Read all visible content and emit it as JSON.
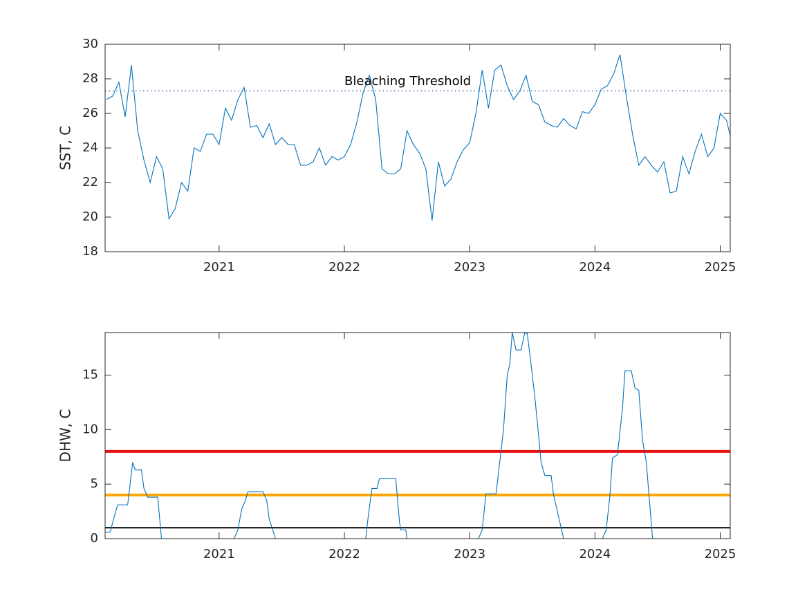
{
  "chart_data": [
    {
      "type": "line",
      "ylabel": "SST, C",
      "xlim": [
        2020.09,
        2025.08
      ],
      "xticks": [
        2021,
        2022,
        2023,
        2024,
        2025
      ],
      "ylim": [
        18,
        30
      ],
      "yticks": [
        18,
        20,
        22,
        24,
        26,
        28,
        30
      ],
      "x": [
        2020.1,
        2020.15,
        2020.2,
        2020.25,
        2020.3,
        2020.35,
        2020.4,
        2020.45,
        2020.5,
        2020.55,
        2020.6,
        2020.65,
        2020.7,
        2020.75,
        2020.8,
        2020.85,
        2020.9,
        2020.95,
        2021.0,
        2021.05,
        2021.1,
        2021.15,
        2021.2,
        2021.25,
        2021.3,
        2021.35,
        2021.4,
        2021.45,
        2021.5,
        2021.55,
        2021.6,
        2021.65,
        2021.7,
        2021.75,
        2021.8,
        2021.85,
        2021.9,
        2021.95,
        2022.0,
        2022.05,
        2022.1,
        2022.15,
        2022.2,
        2022.25,
        2022.3,
        2022.35,
        2022.4,
        2022.45,
        2022.5,
        2022.55,
        2022.6,
        2022.65,
        2022.7,
        2022.75,
        2022.8,
        2022.85,
        2022.9,
        2022.95,
        2023.0,
        2023.05,
        2023.1,
        2023.15,
        2023.2,
        2023.25,
        2023.3,
        2023.35,
        2023.4,
        2023.45,
        2023.5,
        2023.55,
        2023.6,
        2023.65,
        2023.7,
        2023.75,
        2023.8,
        2023.85,
        2023.9,
        2023.95,
        2024.0,
        2024.05,
        2024.1,
        2024.15,
        2024.2,
        2024.25,
        2024.3,
        2024.35,
        2024.4,
        2024.45,
        2024.5,
        2024.55,
        2024.6,
        2024.65,
        2024.7,
        2024.75,
        2024.8,
        2024.85,
        2024.9,
        2024.95,
        2025.0,
        2025.05,
        2025.08
      ],
      "series": [
        {
          "color": "#0072bd",
          "values": [
            26.8,
            27.0,
            27.8,
            25.8,
            28.8,
            25.0,
            23.3,
            22.0,
            23.5,
            22.8,
            19.9,
            20.5,
            22.0,
            21.5,
            24.0,
            23.8,
            24.8,
            24.8,
            24.2,
            26.3,
            25.6,
            26.8,
            27.5,
            25.2,
            25.3,
            24.6,
            25.4,
            24.2,
            24.6,
            24.2,
            24.2,
            23.0,
            23.0,
            23.2,
            24.0,
            23.0,
            23.5,
            23.3,
            23.5,
            24.2,
            25.5,
            27.2,
            28.2,
            26.8,
            22.8,
            22.5,
            22.5,
            22.8,
            25.0,
            24.2,
            23.7,
            22.8,
            19.8,
            23.2,
            21.8,
            22.2,
            23.2,
            23.9,
            24.3,
            26.0,
            28.5,
            26.3,
            28.5,
            28.8,
            27.6,
            26.8,
            27.3,
            28.2,
            26.7,
            26.5,
            25.5,
            25.3,
            25.2,
            25.7,
            25.3,
            25.1,
            26.1,
            26.0,
            26.5,
            27.4,
            27.6,
            28.3,
            29.4,
            27.0,
            24.8,
            23.0,
            23.5,
            23.0,
            22.6,
            23.2,
            21.4,
            21.5,
            23.5,
            22.5,
            23.8,
            24.8,
            23.5,
            24.0,
            26.0,
            25.6,
            24.7
          ]
        }
      ],
      "hlines": [
        {
          "value": 27.3,
          "color": "#1f3f9f",
          "style": "dotted"
        }
      ],
      "annotations": [
        {
          "text": "Bleaching Threshold",
          "x": 2022.0,
          "y": 27.84
        }
      ]
    },
    {
      "type": "line",
      "ylabel": "DHW, C",
      "xlim": [
        2020.09,
        2025.08
      ],
      "xticks": [
        2021,
        2022,
        2023,
        2024,
        2025
      ],
      "ylim": [
        0,
        18.9
      ],
      "yticks": [
        0,
        5,
        10,
        15
      ],
      "x": [
        2020.09,
        2020.13,
        2020.17,
        2020.19,
        2020.27,
        2020.31,
        2020.33,
        2020.38,
        2020.4,
        2020.43,
        2020.51,
        2020.54,
        2021.12,
        2021.15,
        2021.18,
        2021.21,
        2021.23,
        2021.35,
        2021.38,
        2021.4,
        2021.45,
        2022.17,
        2022.19,
        2022.22,
        2022.26,
        2022.28,
        2022.41,
        2022.44,
        2022.45,
        2022.49,
        2022.5,
        2023.07,
        2023.1,
        2023.13,
        2023.21,
        2023.23,
        2023.27,
        2023.3,
        2023.32,
        2023.34,
        2023.37,
        2023.41,
        2023.44,
        2023.46,
        2023.49,
        2023.52,
        2023.55,
        2023.57,
        2023.6,
        2023.65,
        2023.67,
        2023.71,
        2023.75,
        2024.06,
        2024.09,
        2024.12,
        2024.14,
        2024.18,
        2024.22,
        2024.24,
        2024.29,
        2024.32,
        2024.35,
        2024.38,
        2024.41,
        2024.46,
        2025.08
      ],
      "series": [
        {
          "color": "#0072bd",
          "values": [
            0.6,
            0.6,
            2.3,
            3.1,
            3.1,
            7.0,
            6.3,
            6.3,
            4.6,
            3.8,
            3.8,
            0,
            0,
            0.8,
            2.7,
            3.5,
            4.3,
            4.3,
            3.5,
            1.8,
            0,
            0,
            2.0,
            4.6,
            4.6,
            5.5,
            5.5,
            1.5,
            0.8,
            0.8,
            0,
            0,
            0.8,
            4.1,
            4.1,
            6.0,
            10,
            15.0,
            16,
            18.9,
            17.3,
            17.3,
            18.9,
            18.8,
            16,
            13,
            9.5,
            7,
            5.8,
            5.8,
            4,
            2,
            0,
            0,
            0.8,
            4.0,
            7.4,
            7.7,
            12,
            15.4,
            15.4,
            13.8,
            13.6,
            9,
            7.0,
            0,
            0
          ]
        }
      ],
      "hlines": [
        {
          "value": 1,
          "color": "#000000",
          "style": "solid"
        },
        {
          "value": 4,
          "color": "#ffa500",
          "style": "bold"
        },
        {
          "value": 8,
          "color": "#e81010",
          "style": "bold"
        }
      ],
      "annotations": []
    }
  ]
}
